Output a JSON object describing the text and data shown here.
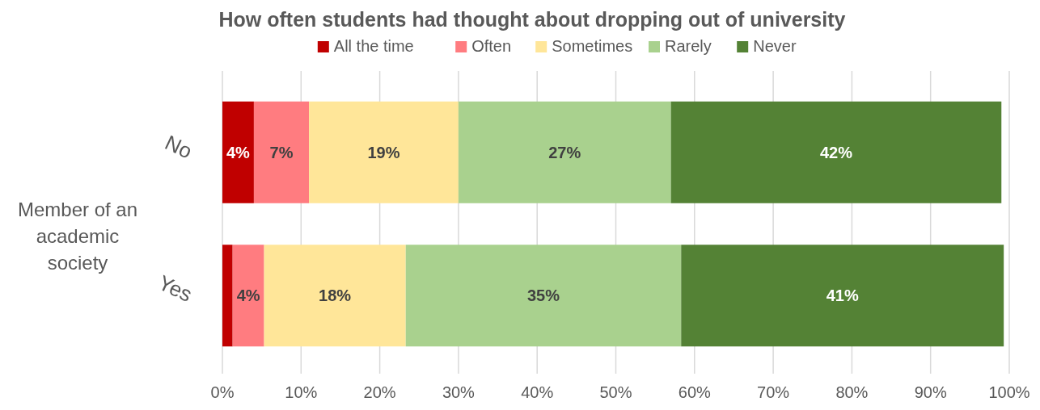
{
  "chart_data": {
    "type": "bar",
    "orientation": "horizontal",
    "stacked": true,
    "title": "How often students had thought about dropping out of university",
    "ylabel": "Member of an academic society",
    "categories": [
      "No",
      "Yes"
    ],
    "series": [
      {
        "name": "All the time",
        "color": "#c00000",
        "values": [
          4,
          1.3
        ],
        "value_labels": [
          "4%",
          null
        ]
      },
      {
        "name": "Often",
        "color": "#ff7c80",
        "values": [
          7,
          4
        ],
        "value_labels": [
          "7%",
          "4%"
        ]
      },
      {
        "name": "Sometimes",
        "color": "#ffe699",
        "values": [
          19,
          18
        ],
        "value_labels": [
          "19%",
          "18%"
        ]
      },
      {
        "name": "Rarely",
        "color": "#a9d18e",
        "values": [
          27,
          35
        ],
        "value_labels": [
          "27%",
          "35%"
        ]
      },
      {
        "name": "Never",
        "color": "#548235",
        "values": [
          42,
          41
        ],
        "value_labels": [
          "42%",
          "41%"
        ]
      }
    ],
    "xlim": [
      0,
      100
    ],
    "xticks": [
      {
        "value": 0,
        "label": "0%"
      },
      {
        "value": 10,
        "label": "10%"
      },
      {
        "value": 20,
        "label": "20%"
      },
      {
        "value": 30,
        "label": "30%"
      },
      {
        "value": 40,
        "label": "40%"
      },
      {
        "value": 50,
        "label": "50%"
      },
      {
        "value": 60,
        "label": "60%"
      },
      {
        "value": 70,
        "label": "70%"
      },
      {
        "value": 80,
        "label": "80%"
      },
      {
        "value": 90,
        "label": "90%"
      },
      {
        "value": 100,
        "label": "100%"
      }
    ],
    "grid": "x",
    "legend": "top"
  }
}
